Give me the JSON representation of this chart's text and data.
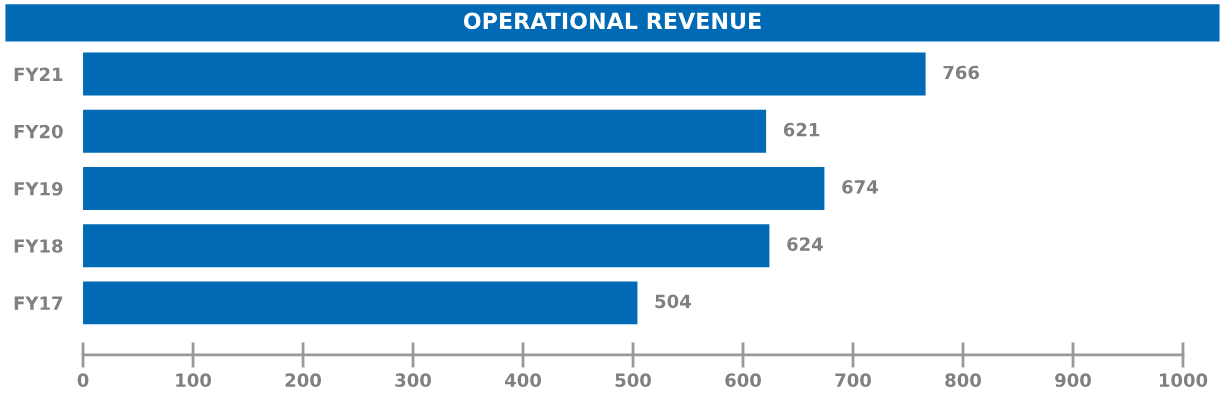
{
  "chart_data": {
    "type": "bar",
    "orientation": "horizontal",
    "title": "OPERATIONAL REVENUE",
    "categories": [
      "FY21",
      "FY20",
      "FY19",
      "FY18",
      "FY17"
    ],
    "values": [
      766,
      621,
      674,
      624,
      504
    ],
    "color": "#006ab5",
    "data_labels": true,
    "xlim": [
      0,
      1000
    ],
    "xticks": [
      0,
      100,
      200,
      300,
      400,
      500,
      600,
      700,
      800,
      900,
      1000
    ],
    "grid": false,
    "legend": false
  }
}
